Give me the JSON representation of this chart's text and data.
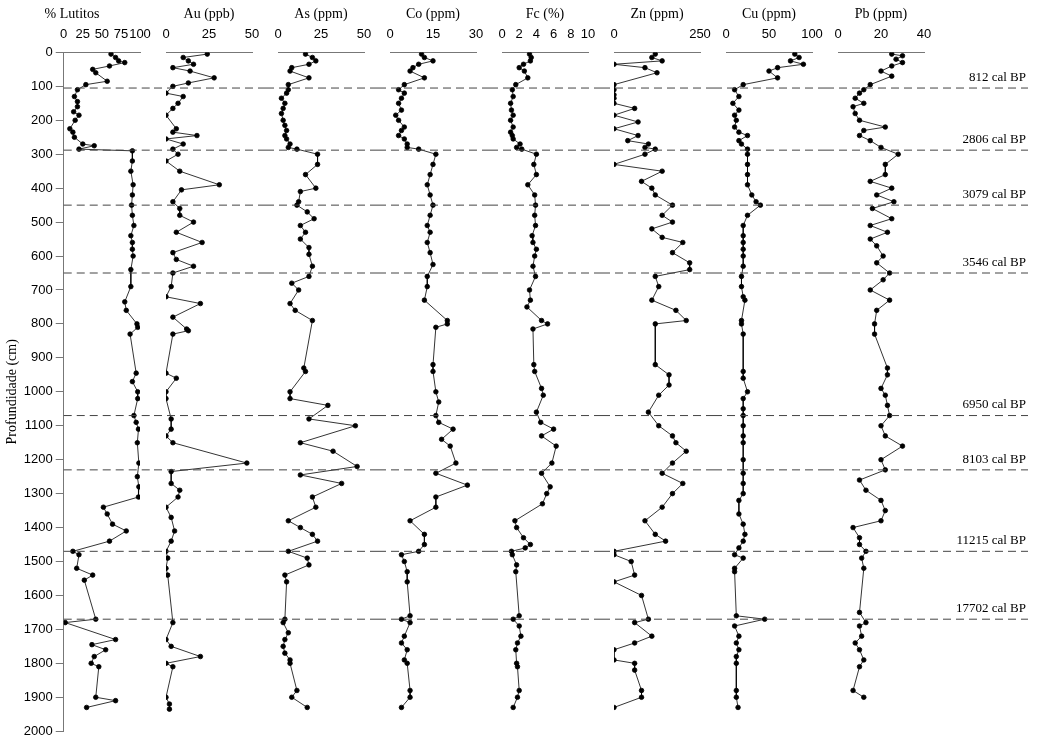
{
  "chart_data": [
    {
      "type": "line",
      "title": "% Lutitos",
      "ylabel": "Profundidade (cm)",
      "xlim": [
        0,
        100
      ],
      "xticks": [
        0,
        25,
        50,
        75,
        100
      ],
      "ylim": [
        2000,
        0
      ],
      "yticks": [
        0,
        100,
        200,
        300,
        400,
        500,
        600,
        700,
        800,
        900,
        1000,
        1100,
        1200,
        1300,
        1400,
        1500,
        1600,
        1700,
        1800,
        1900,
        2000
      ],
      "marker": "circle",
      "line_style": "solid",
      "ref_lines": [
        {
          "axis": "y",
          "value": 105,
          "line_style": "dashed"
        },
        {
          "axis": "y",
          "value": 288,
          "line_style": "dashed"
        },
        {
          "axis": "y",
          "value": 450,
          "line_style": "dashed"
        },
        {
          "axis": "y",
          "value": 650,
          "line_style": "dashed"
        },
        {
          "axis": "y",
          "value": 1070,
          "line_style": "dashed"
        },
        {
          "axis": "y",
          "value": 1230,
          "line_style": "dashed"
        },
        {
          "axis": "y",
          "value": 1470,
          "line_style": "dashed"
        },
        {
          "axis": "y",
          "value": 1670,
          "line_style": "dashed"
        }
      ],
      "series": [
        {
          "color": "#000000",
          "x": [
            62,
            68,
            72,
            80,
            60,
            38,
            42,
            57,
            29,
            18,
            14,
            18,
            18,
            13,
            20,
            15,
            8,
            12,
            14,
            25,
            40,
            20,
            90,
            90,
            88,
            91,
            90,
            89,
            90,
            92,
            88,
            90,
            90,
            91,
            88,
            88,
            80,
            82,
            96,
            97,
            87,
            95,
            90,
            97,
            97,
            92,
            95,
            98,
            96.5,
            98.5,
            96.5,
            98.5,
            98,
            52,
            57,
            64,
            82,
            60,
            12,
            20,
            17,
            38,
            27,
            42,
            2,
            68,
            37,
            55,
            40,
            36,
            46,
            42,
            68,
            30
          ],
          "values": [
            5,
            15,
            25,
            30,
            40,
            50,
            60,
            85,
            95,
            110,
            130,
            145,
            160,
            175,
            185,
            200,
            225,
            235,
            250,
            270,
            275,
            285,
            290,
            320,
            350,
            390,
            420,
            450,
            480,
            510,
            540,
            560,
            580,
            600,
            640,
            690,
            735,
            760,
            800,
            810,
            830,
            945,
            970,
            1000,
            1020,
            1070,
            1090,
            1110,
            1150,
            1210,
            1250,
            1280,
            1310,
            1340,
            1360,
            1390,
            1410,
            1440,
            1470,
            1480,
            1520,
            1540,
            1555,
            1670,
            1680,
            1730,
            1745,
            1760,
            1780,
            1800,
            1810,
            1900,
            1910,
            1930
          ]
        }
      ]
    },
    {
      "type": "line",
      "title": "Au (ppb)",
      "xlim": [
        0,
        50
      ],
      "xticks": [
        0,
        25,
        50
      ],
      "ylim": [
        2000,
        0
      ],
      "yticks": [
        0,
        100,
        200,
        300,
        400,
        500,
        600,
        700,
        800,
        900,
        1000,
        1100,
        1200,
        1300,
        1400,
        1500,
        1600,
        1700,
        1800,
        1900,
        2000
      ],
      "tick_labels": "x",
      "marker": "circle",
      "line_style": "solid",
      "ref_lines": [
        {
          "axis": "y",
          "value": 105,
          "line_style": "dashed"
        },
        {
          "axis": "y",
          "value": 288,
          "line_style": "dashed"
        },
        {
          "axis": "y",
          "value": 450,
          "line_style": "dashed"
        },
        {
          "axis": "y",
          "value": 650,
          "line_style": "dashed"
        },
        {
          "axis": "y",
          "value": 1070,
          "line_style": "dashed"
        },
        {
          "axis": "y",
          "value": 1230,
          "line_style": "dashed"
        },
        {
          "axis": "y",
          "value": 1470,
          "line_style": "dashed"
        },
        {
          "axis": "y",
          "value": 1670,
          "line_style": "dashed"
        }
      ],
      "series": [
        {
          "color": "#000000",
          "x": [
            24,
            10,
            13,
            16,
            4,
            14,
            28,
            13,
            4,
            0,
            10,
            7,
            4,
            0,
            6,
            4,
            18,
            0,
            10,
            4,
            7,
            0,
            8,
            31,
            9,
            4,
            8,
            8,
            16,
            6,
            21,
            4,
            6,
            16,
            4,
            3,
            0,
            20,
            4,
            12,
            13,
            4,
            0,
            6,
            0,
            0,
            3,
            3,
            0,
            4,
            47,
            3,
            3,
            8,
            7,
            0,
            3,
            5,
            3,
            0,
            1,
            0,
            1,
            4,
            0,
            3,
            20,
            0,
            4,
            0,
            2,
            2
          ],
          "values": [
            5,
            15,
            25,
            35,
            45,
            55,
            75,
            90,
            100,
            120,
            130,
            150,
            165,
            185,
            225,
            235,
            245,
            255,
            270,
            285,
            300,
            320,
            350,
            390,
            405,
            440,
            460,
            480,
            500,
            530,
            560,
            590,
            610,
            630,
            650,
            690,
            720,
            740,
            780,
            815,
            820,
            830,
            945,
            960,
            1000,
            1020,
            1080,
            1110,
            1130,
            1150,
            1210,
            1235,
            1270,
            1290,
            1310,
            1340,
            1370,
            1410,
            1440,
            1470,
            1490,
            1520,
            1540,
            1680,
            1730,
            1750,
            1780,
            1800,
            1810,
            1900,
            1920,
            1935
          ]
        }
      ]
    },
    {
      "type": "line",
      "title": "As (ppm)",
      "xlim": [
        0,
        50
      ],
      "xticks": [
        0,
        25,
        50
      ],
      "ylim": [
        2000,
        0
      ],
      "yticks": [
        0,
        100,
        200,
        300,
        400,
        500,
        600,
        700,
        800,
        900,
        1000,
        1100,
        1200,
        1300,
        1400,
        1500,
        1600,
        1700,
        1800,
        1900,
        2000
      ],
      "tick_labels": "x",
      "marker": "circle",
      "line_style": "solid",
      "ref_lines": [
        {
          "axis": "y",
          "value": 105,
          "line_style": "dashed"
        },
        {
          "axis": "y",
          "value": 288,
          "line_style": "dashed"
        },
        {
          "axis": "y",
          "value": 450,
          "line_style": "dashed"
        },
        {
          "axis": "y",
          "value": 650,
          "line_style": "dashed"
        },
        {
          "axis": "y",
          "value": 1070,
          "line_style": "dashed"
        },
        {
          "axis": "y",
          "value": 1230,
          "line_style": "dashed"
        },
        {
          "axis": "y",
          "value": 1470,
          "line_style": "dashed"
        },
        {
          "axis": "y",
          "value": 1670,
          "line_style": "dashed"
        }
      ],
      "series": [
        {
          "color": "#000000",
          "x": [
            16,
            20,
            22,
            18,
            8,
            7,
            18,
            6,
            6,
            5,
            2,
            4,
            3,
            2,
            3,
            4,
            5,
            4,
            5,
            7,
            6,
            11,
            23,
            23,
            16,
            22,
            13,
            12,
            11,
            17,
            21,
            13,
            16,
            13,
            18,
            18,
            20,
            18,
            8,
            12,
            7,
            10,
            20,
            15,
            16,
            7,
            7,
            29,
            18,
            45,
            13,
            32,
            46,
            13,
            37,
            20,
            22,
            6,
            13,
            20,
            23,
            6,
            17,
            18,
            4,
            5,
            4,
            3,
            6,
            4,
            3,
            4,
            7,
            7,
            11,
            8,
            17
          ],
          "values": [
            5,
            15,
            25,
            35,
            45,
            55,
            75,
            95,
            110,
            120,
            135,
            150,
            165,
            180,
            200,
            215,
            230,
            245,
            255,
            270,
            280,
            285,
            300,
            330,
            360,
            400,
            410,
            440,
            450,
            470,
            490,
            510,
            530,
            550,
            575,
            595,
            630,
            660,
            680,
            700,
            740,
            760,
            790,
            930,
            940,
            1000,
            1020,
            1040,
            1080,
            1100,
            1150,
            1175,
            1220,
            1245,
            1270,
            1310,
            1340,
            1380,
            1400,
            1420,
            1440,
            1470,
            1490,
            1510,
            1540,
            1560,
            1670,
            1680,
            1710,
            1730,
            1750,
            1770,
            1790,
            1800,
            1880,
            1900,
            1930
          ]
        }
      ]
    },
    {
      "type": "line",
      "title": "Co (ppm)",
      "xlim": [
        0,
        30
      ],
      "xticks": [
        0,
        15,
        30
      ],
      "ylim": [
        2000,
        0
      ],
      "yticks": [
        0,
        100,
        200,
        300,
        400,
        500,
        600,
        700,
        800,
        900,
        1000,
        1100,
        1200,
        1300,
        1400,
        1500,
        1600,
        1700,
        1800,
        1900,
        2000
      ],
      "tick_labels": "x",
      "marker": "circle",
      "line_style": "solid",
      "ref_lines": [
        {
          "axis": "y",
          "value": 105,
          "line_style": "dashed"
        },
        {
          "axis": "y",
          "value": 288,
          "line_style": "dashed"
        },
        {
          "axis": "y",
          "value": 450,
          "line_style": "dashed"
        },
        {
          "axis": "y",
          "value": 650,
          "line_style": "dashed"
        },
        {
          "axis": "y",
          "value": 1070,
          "line_style": "dashed"
        },
        {
          "axis": "y",
          "value": 1230,
          "line_style": "dashed"
        },
        {
          "axis": "y",
          "value": 1470,
          "line_style": "dashed"
        },
        {
          "axis": "y",
          "value": 1670,
          "line_style": "dashed"
        }
      ],
      "series": [
        {
          "color": "#000000",
          "x": [
            11,
            12,
            15,
            10,
            8,
            7,
            12,
            5,
            3,
            5,
            4,
            3,
            4,
            2,
            3,
            5,
            4,
            3,
            5,
            6,
            6,
            10,
            16,
            15,
            14,
            13,
            14,
            15,
            14,
            13,
            14,
            13,
            14,
            15,
            13,
            13,
            12,
            20,
            20,
            16,
            15,
            15,
            16,
            17,
            16,
            17,
            22,
            18,
            21,
            23,
            16,
            27,
            16,
            16,
            7,
            12,
            12,
            10,
            4,
            5,
            6,
            6,
            7,
            4,
            7,
            5,
            4,
            6,
            5,
            6,
            7,
            7,
            4
          ],
          "values": [
            5,
            15,
            25,
            35,
            45,
            55,
            75,
            95,
            110,
            120,
            135,
            150,
            170,
            185,
            200,
            220,
            230,
            245,
            255,
            270,
            280,
            285,
            300,
            330,
            360,
            390,
            420,
            450,
            480,
            510,
            530,
            560,
            590,
            625,
            660,
            690,
            730,
            790,
            800,
            810,
            920,
            940,
            1000,
            1030,
            1070,
            1090,
            1110,
            1140,
            1160,
            1210,
            1240,
            1275,
            1310,
            1340,
            1380,
            1420,
            1450,
            1470,
            1480,
            1500,
            1530,
            1560,
            1660,
            1670,
            1680,
            1720,
            1740,
            1760,
            1790,
            1800,
            1880,
            1900,
            1930
          ]
        }
      ]
    },
    {
      "type": "line",
      "title": "Fc (%)",
      "xlim": [
        0,
        10
      ],
      "xticks": [
        0,
        2,
        4,
        6,
        8,
        10
      ],
      "ylim": [
        2000,
        0
      ],
      "yticks": [
        0,
        100,
        200,
        300,
        400,
        500,
        600,
        700,
        800,
        900,
        1000,
        1100,
        1200,
        1300,
        1400,
        1500,
        1600,
        1700,
        1800,
        1900,
        2000
      ],
      "tick_labels": "x",
      "marker": "circle",
      "line_style": "solid",
      "ref_lines": [
        {
          "axis": "y",
          "value": 105,
          "line_style": "dashed"
        },
        {
          "axis": "y",
          "value": 288,
          "line_style": "dashed"
        },
        {
          "axis": "y",
          "value": 450,
          "line_style": "dashed"
        },
        {
          "axis": "y",
          "value": 650,
          "line_style": "dashed"
        },
        {
          "axis": "y",
          "value": 1070,
          "line_style": "dashed"
        },
        {
          "axis": "y",
          "value": 1230,
          "line_style": "dashed"
        },
        {
          "axis": "y",
          "value": 1470,
          "line_style": "dashed"
        },
        {
          "axis": "y",
          "value": 1670,
          "line_style": "dashed"
        }
      ],
      "series": [
        {
          "color": "#000000",
          "x": [
            3.2,
            3.4,
            3.3,
            2.5,
            2.0,
            2.6,
            3.0,
            1.6,
            1.2,
            1.3,
            1.0,
            1.1,
            1.3,
            1.0,
            1.3,
            1.0,
            1.2,
            1.3,
            2.1,
            1.7,
            2.3,
            4.0,
            3.7,
            4.0,
            3.0,
            3.8,
            3.9,
            3.8,
            3.9,
            3.5,
            3.6,
            4.0,
            3.8,
            3.6,
            3.9,
            3.2,
            3.3,
            2.9,
            4.6,
            5.3,
            3.6,
            3.7,
            3.8,
            4.6,
            4.8,
            4.0,
            4.5,
            6.0,
            4.6,
            6.3,
            5.8,
            4.6,
            5.6,
            5.2,
            4.7,
            1.5,
            1.7,
            2.5,
            3.3,
            2.7,
            1.1,
            1.2,
            1.7,
            1.6,
            2.0,
            1.3,
            2.0,
            2.2,
            1.8,
            1.6,
            1.7,
            1.8,
            2.0,
            1.8,
            1.3
          ],
          "values": [
            5,
            15,
            25,
            35,
            45,
            55,
            75,
            95,
            110,
            130,
            150,
            170,
            185,
            200,
            220,
            235,
            245,
            255,
            270,
            280,
            285,
            300,
            330,
            360,
            390,
            420,
            450,
            480,
            510,
            540,
            560,
            580,
            600,
            630,
            660,
            700,
            730,
            750,
            790,
            800,
            815,
            920,
            940,
            990,
            1010,
            1060,
            1090,
            1110,
            1130,
            1160,
            1210,
            1240,
            1280,
            1300,
            1330,
            1380,
            1400,
            1430,
            1450,
            1460,
            1470,
            1480,
            1510,
            1530,
            1660,
            1670,
            1690,
            1720,
            1740,
            1760,
            1800,
            1810,
            1880,
            1900,
            1930
          ]
        }
      ]
    },
    {
      "type": "line",
      "title": "Zn (ppm)",
      "xlim": [
        0,
        250
      ],
      "xticks": [
        0,
        250
      ],
      "ylim": [
        2000,
        0
      ],
      "yticks": [
        0,
        100,
        200,
        300,
        400,
        500,
        600,
        700,
        800,
        900,
        1000,
        1100,
        1200,
        1300,
        1400,
        1500,
        1600,
        1700,
        1800,
        1900,
        2000
      ],
      "tick_labels": "x",
      "marker": "circle",
      "line_style": "solid",
      "ref_lines": [
        {
          "axis": "y",
          "value": 105,
          "line_style": "dashed"
        },
        {
          "axis": "y",
          "value": 288,
          "line_style": "dashed"
        },
        {
          "axis": "y",
          "value": 450,
          "line_style": "dashed"
        },
        {
          "axis": "y",
          "value": 650,
          "line_style": "dashed"
        },
        {
          "axis": "y",
          "value": 1070,
          "line_style": "dashed"
        },
        {
          "axis": "y",
          "value": 1230,
          "line_style": "dashed"
        },
        {
          "axis": "y",
          "value": 1470,
          "line_style": "dashed"
        },
        {
          "axis": "y",
          "value": 1670,
          "line_style": "dashed"
        }
      ],
      "series": [
        {
          "color": "#000000",
          "x": [
            120,
            110,
            140,
            0,
            90,
            125,
            0,
            0,
            0,
            0,
            0,
            60,
            0,
            70,
            0,
            70,
            40,
            100,
            90,
            120,
            90,
            0,
            140,
            80,
            110,
            120,
            170,
            140,
            170,
            110,
            140,
            200,
            170,
            220,
            220,
            120,
            130,
            110,
            180,
            210,
            120,
            120,
            160,
            160,
            130,
            100,
            130,
            170,
            180,
            210,
            170,
            140,
            200,
            170,
            140,
            90,
            120,
            150,
            0,
            0,
            50,
            60,
            0,
            80,
            100,
            60,
            110,
            60,
            0,
            0,
            60,
            60,
            80,
            80,
            0
          ],
          "values": [
            5,
            15,
            25,
            35,
            45,
            60,
            95,
            110,
            125,
            135,
            150,
            165,
            185,
            205,
            225,
            245,
            260,
            270,
            280,
            285,
            300,
            330,
            350,
            380,
            400,
            420,
            450,
            480,
            500,
            520,
            545,
            560,
            590,
            620,
            640,
            660,
            690,
            730,
            760,
            790,
            800,
            920,
            950,
            980,
            1010,
            1060,
            1100,
            1130,
            1150,
            1175,
            1210,
            1240,
            1270,
            1300,
            1340,
            1380,
            1420,
            1440,
            1470,
            1480,
            1500,
            1540,
            1560,
            1600,
            1670,
            1680,
            1720,
            1740,
            1760,
            1790,
            1800,
            1820,
            1880,
            1900,
            1930
          ]
        }
      ]
    },
    {
      "type": "line",
      "title": "Cu (ppm)",
      "xlim": [
        0,
        100
      ],
      "xticks": [
        0,
        50,
        100
      ],
      "ylim": [
        2000,
        0
      ],
      "yticks": [
        0,
        100,
        200,
        300,
        400,
        500,
        600,
        700,
        800,
        900,
        1000,
        1100,
        1200,
        1300,
        1400,
        1500,
        1600,
        1700,
        1800,
        1900,
        2000
      ],
      "tick_labels": "x",
      "marker": "circle",
      "line_style": "solid",
      "ref_lines": [
        {
          "axis": "y",
          "value": 105,
          "line_style": "dashed"
        },
        {
          "axis": "y",
          "value": 288,
          "line_style": "dashed"
        },
        {
          "axis": "y",
          "value": 450,
          "line_style": "dashed"
        },
        {
          "axis": "y",
          "value": 650,
          "line_style": "dashed"
        },
        {
          "axis": "y",
          "value": 1070,
          "line_style": "dashed"
        },
        {
          "axis": "y",
          "value": 1230,
          "line_style": "dashed"
        },
        {
          "axis": "y",
          "value": 1470,
          "line_style": "dashed"
        },
        {
          "axis": "y",
          "value": 1670,
          "line_style": "dashed"
        }
      ],
      "series": [
        {
          "color": "#000000",
          "x": [
            80,
            85,
            75,
            90,
            60,
            50,
            60,
            20,
            10,
            15,
            8,
            15,
            10,
            12,
            10,
            15,
            25,
            15,
            18,
            25,
            25,
            25,
            25,
            25,
            30,
            35,
            40,
            25,
            20,
            20,
            20,
            20,
            20,
            20,
            18,
            18,
            20,
            22,
            18,
            18,
            20,
            20,
            20,
            25,
            20,
            20,
            20,
            20,
            20,
            20,
            20,
            20,
            20,
            20,
            15,
            15,
            20,
            22,
            20,
            15,
            10,
            20,
            10,
            10,
            12,
            45,
            10,
            15,
            12,
            15,
            12,
            12,
            12,
            12,
            14
          ],
          "values": [
            5,
            15,
            25,
            35,
            45,
            55,
            75,
            95,
            110,
            130,
            150,
            170,
            185,
            200,
            220,
            235,
            245,
            260,
            270,
            285,
            300,
            330,
            360,
            390,
            420,
            440,
            450,
            480,
            510,
            540,
            560,
            580,
            600,
            630,
            660,
            690,
            720,
            730,
            790,
            800,
            830,
            940,
            960,
            1000,
            1020,
            1050,
            1070,
            1100,
            1130,
            1150,
            1200,
            1240,
            1270,
            1300,
            1320,
            1360,
            1390,
            1420,
            1440,
            1460,
            1480,
            1490,
            1520,
            1530,
            1660,
            1670,
            1690,
            1720,
            1740,
            1760,
            1780,
            1800,
            1880,
            1900,
            1930
          ]
        }
      ]
    },
    {
      "type": "line",
      "title": "Pb (ppm)",
      "xlim": [
        0,
        40
      ],
      "xticks": [
        0,
        20,
        40
      ],
      "ylim": [
        2000,
        0
      ],
      "yticks": [
        0,
        100,
        200,
        300,
        400,
        500,
        600,
        700,
        800,
        900,
        1000,
        1100,
        1200,
        1300,
        1400,
        1500,
        1600,
        1700,
        1800,
        1900,
        2000
      ],
      "tick_labels": "x",
      "marker": "circle",
      "line_style": "solid",
      "ref_lines": [
        {
          "axis": "y",
          "value": 105,
          "label": "812 cal BP",
          "line_style": "dashed"
        },
        {
          "axis": "y",
          "value": 288,
          "label": "2806 cal BP",
          "line_style": "dashed"
        },
        {
          "axis": "y",
          "value": 450,
          "label": "3079 cal BP",
          "line_style": "dashed"
        },
        {
          "axis": "y",
          "value": 650,
          "label": "3546 cal BP",
          "line_style": "dashed"
        },
        {
          "axis": "y",
          "value": 1070,
          "label": "6950 cal BP",
          "line_style": "dashed"
        },
        {
          "axis": "y",
          "value": 1230,
          "label": "8103 cal BP",
          "line_style": "dashed"
        },
        {
          "axis": "y",
          "value": 1470,
          "label": "11215 cal BP",
          "line_style": "dashed"
        },
        {
          "axis": "y",
          "value": 1670,
          "label": "17702 cal BP",
          "line_style": "dashed"
        }
      ],
      "series": [
        {
          "color": "#000000",
          "x": [
            25,
            30,
            27,
            30,
            25,
            20,
            25,
            15,
            12,
            10,
            8,
            12,
            7,
            8,
            10,
            22,
            12,
            10,
            15,
            20,
            28,
            22,
            22,
            15,
            25,
            18,
            26,
            16,
            25,
            15,
            23,
            15,
            18,
            21,
            18,
            24,
            21,
            15,
            24,
            18,
            17,
            17,
            23,
            23,
            20,
            22,
            23,
            24,
            20,
            22,
            30,
            20,
            22,
            10,
            13,
            20,
            22,
            20,
            7,
            10,
            10,
            13,
            11,
            12,
            10,
            13,
            10,
            11,
            8,
            10,
            12,
            10,
            7,
            12
          ],
          "values": [
            5,
            10,
            20,
            30,
            40,
            55,
            70,
            95,
            110,
            120,
            135,
            150,
            160,
            180,
            200,
            220,
            230,
            245,
            260,
            280,
            300,
            330,
            360,
            380,
            400,
            420,
            440,
            460,
            490,
            510,
            530,
            550,
            570,
            600,
            620,
            650,
            670,
            700,
            730,
            760,
            800,
            830,
            930,
            950,
            990,
            1010,
            1040,
            1070,
            1100,
            1130,
            1160,
            1200,
            1230,
            1260,
            1290,
            1320,
            1350,
            1380,
            1400,
            1430,
            1450,
            1470,
            1490,
            1520,
            1650,
            1680,
            1690,
            1720,
            1740,
            1760,
            1790,
            1810,
            1880,
            1900
          ]
        }
      ]
    }
  ]
}
